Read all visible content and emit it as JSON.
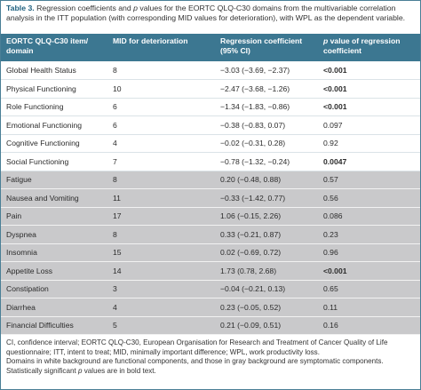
{
  "caption": {
    "label": "Table 3.",
    "text_a": " Regression coefficients and ",
    "italic_p": "p",
    "text_b": " values for the EORTC QLQ-C30 domains from the multivariable correlation analysis in the ITT population (with corresponding MID values for deterioration), with WPL as the dependent variable."
  },
  "headers": {
    "item": "EORTC QLQ-C30 item/ domain",
    "mid": "MID for deterioration",
    "coef": "Regression coefficient (95% CI)",
    "p_italic": "p",
    "p_rest": " value of regression coefficient"
  },
  "rows": [
    {
      "item": "Global Health Status",
      "mid": "8",
      "coef": "−3.03 (−3.69, −2.37)",
      "p": "<0.001",
      "type": "func",
      "bold": true
    },
    {
      "item": "Physical Functioning",
      "mid": "10",
      "coef": "−2.47 (−3.68, −1.26)",
      "p": "<0.001",
      "type": "func",
      "bold": true
    },
    {
      "item": "Role Functioning",
      "mid": "6",
      "coef": "−1.34 (−1.83, −0.86)",
      "p": "<0.001",
      "type": "func",
      "bold": true
    },
    {
      "item": "Emotional Functioning",
      "mid": "6",
      "coef": "−0.38 (−0.83, 0.07)",
      "p": "0.097",
      "type": "func",
      "bold": false
    },
    {
      "item": "Cognitive Functioning",
      "mid": "4",
      "coef": "−0.02 (−0.31, 0.28)",
      "p": "0.92",
      "type": "func",
      "bold": false
    },
    {
      "item": "Social Functioning",
      "mid": "7",
      "coef": "−0.78 (−1.32, −0.24)",
      "p": "0.0047",
      "type": "func",
      "bold": true
    },
    {
      "item": "Fatigue",
      "mid": "8",
      "coef": "0.20 (−0.48, 0.88)",
      "p": "0.57",
      "type": "sympt",
      "bold": false
    },
    {
      "item": "Nausea and Vomiting",
      "mid": "11",
      "coef": "−0.33 (−1.42, 0.77)",
      "p": "0.56",
      "type": "sympt",
      "bold": false
    },
    {
      "item": "Pain",
      "mid": "17",
      "coef": "1.06 (−0.15, 2.26)",
      "p": "0.086",
      "type": "sympt",
      "bold": false
    },
    {
      "item": "Dyspnea",
      "mid": "8",
      "coef": "0.33 (−0.21, 0.87)",
      "p": "0.23",
      "type": "sympt",
      "bold": false
    },
    {
      "item": "Insomnia",
      "mid": "15",
      "coef": "0.02 (−0.69, 0.72)",
      "p": "0.96",
      "type": "sympt",
      "bold": false
    },
    {
      "item": "Appetite Loss",
      "mid": "14",
      "coef": "1.73 (0.78, 2.68)",
      "p": "<0.001",
      "type": "sympt",
      "bold": true
    },
    {
      "item": "Constipation",
      "mid": "3",
      "coef": "−0.04 (−0.21, 0.13)",
      "p": "0.65",
      "type": "sympt",
      "bold": false
    },
    {
      "item": "Diarrhea",
      "mid": "4",
      "coef": "0.23 (−0.05, 0.52)",
      "p": "0.11",
      "type": "sympt",
      "bold": false
    },
    {
      "item": "Financial Difficulties",
      "mid": "5",
      "coef": "0.21 (−0.09, 0.51)",
      "p": "0.16",
      "type": "sympt",
      "bold": false
    }
  ],
  "footnotes": {
    "line1": "CI, confidence interval; EORTC QLQ-C30, European Organisation for Research and Treatment of Cancer Quality of Life questionnaire; ITT, intent to treat; MID, minimally important difference; WPL, work productivity loss.",
    "line2": "Domains in white background are functional components, and those in gray background are symptomatic components.",
    "line3_a": "Statistically significant ",
    "line3_p": "p",
    "line3_b": " values are in bold text."
  }
}
